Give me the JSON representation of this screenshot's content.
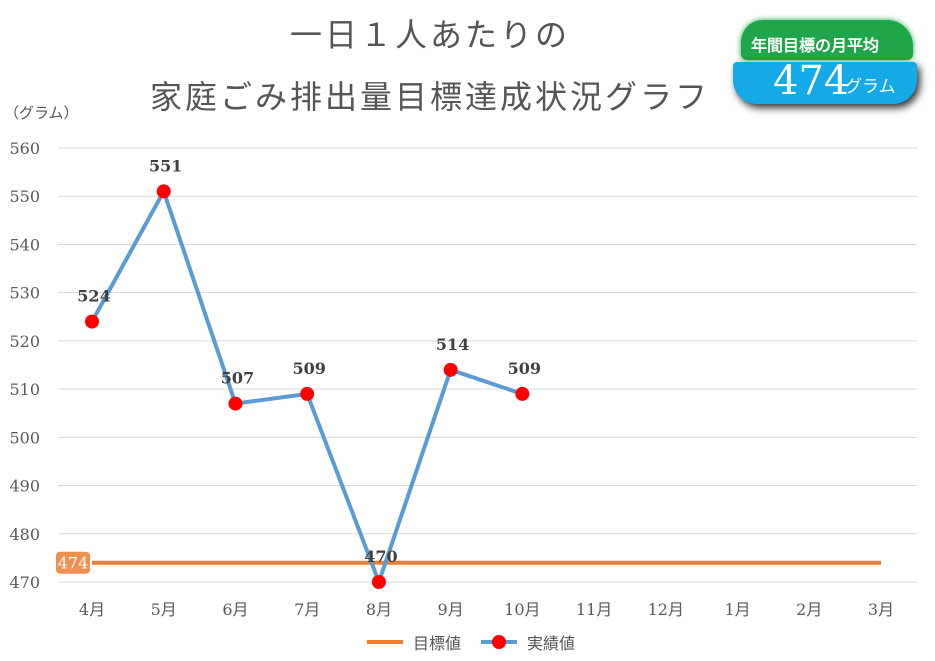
{
  "title_line1": "一日１人あたりの",
  "title_line2": "家庭ごみ排出量目標達成状況グラフ",
  "badge": {
    "label": "年間目標の月平均",
    "value": "474",
    "unit": "グラム"
  },
  "colors": {
    "target": "#ed7d31",
    "actual_line": "#5b9bd5",
    "actual_marker": "#ff0000"
  },
  "chart_data": {
    "type": "line",
    "ylabel": "（グラム）",
    "ylim": [
      470,
      560
    ],
    "yticks": [
      470,
      480,
      490,
      500,
      510,
      520,
      530,
      540,
      550,
      560
    ],
    "grid": true,
    "legend_position": "bottom",
    "categories": [
      "4月",
      "5月",
      "6月",
      "7月",
      "8月",
      "9月",
      "10月",
      "11月",
      "12月",
      "1月",
      "2月",
      "3月"
    ],
    "series": [
      {
        "name": "目標値",
        "values": [
          474,
          474,
          474,
          474,
          474,
          474,
          474,
          474,
          474,
          474,
          474,
          474
        ],
        "data_label": "474"
      },
      {
        "name": "実績値",
        "values": [
          524,
          551,
          507,
          509,
          470,
          514,
          509,
          null,
          null,
          null,
          null,
          null
        ]
      }
    ]
  }
}
